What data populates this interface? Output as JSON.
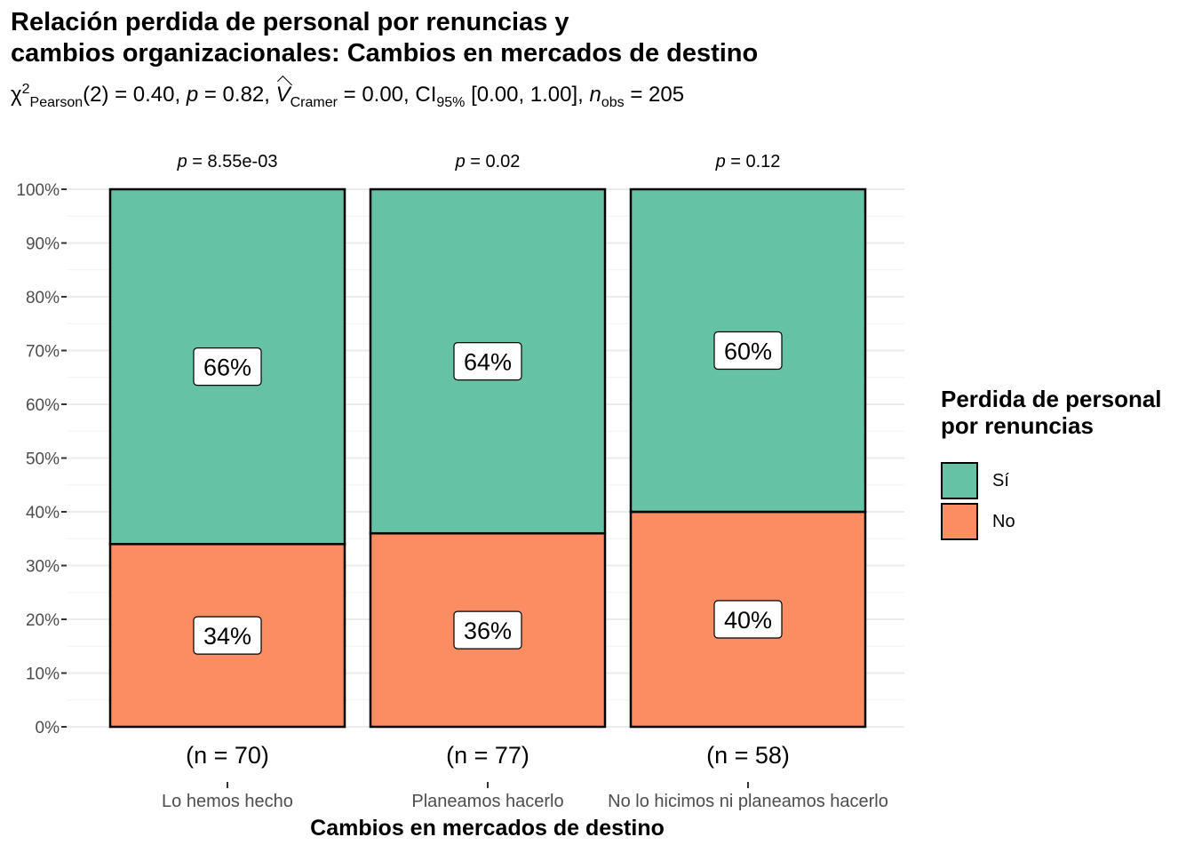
{
  "title_lines": [
    "Relación perdida de personal por renuncias y",
    "cambios organizacionales: Cambios en mercados de destino"
  ],
  "subtitle": {
    "chi": "χ",
    "chi_sup": "2",
    "chi_sub": "Pearson",
    "df_part": "(2) = 0.40, ",
    "p_label": "p",
    "p_part": " = 0.82, ",
    "v_label": "V",
    "v_sub": "Cramer",
    "v_part": " = 0.00, CI",
    "ci_sub": "95%",
    "ci_part": " [0.00, 1.00], ",
    "n_label": "n",
    "n_sub": "obs",
    "n_part": " = 205"
  },
  "legend": {
    "title_lines": [
      "Perdida de personal",
      "por renuncias"
    ],
    "items": [
      {
        "label": "Sí",
        "color": "#66C2A5"
      },
      {
        "label": "No",
        "color": "#FC8D62"
      }
    ]
  },
  "chart_data": {
    "type": "bar",
    "stacked": true,
    "xlabel": "Cambios en mercados de destino",
    "categories": [
      "Lo hemos hecho",
      "Planeamos hacerlo",
      "No lo hicimos ni planeamos hacerlo"
    ],
    "series": [
      {
        "name": "No",
        "values": [
          34,
          36,
          40
        ],
        "color": "#FC8D62"
      },
      {
        "name": "Sí",
        "values": [
          66,
          64,
          60
        ],
        "color": "#66C2A5"
      }
    ],
    "bar_labels": [
      [
        "34%",
        "66%"
      ],
      [
        "36%",
        "64%"
      ],
      [
        "40%",
        "60%"
      ]
    ],
    "n_labels": [
      "(n = 70)",
      "(n = 77)",
      "(n = 58)"
    ],
    "p_values": [
      "8.55e-03",
      "0.02",
      "0.12"
    ],
    "p_prefix": "p",
    "yticks": [
      "0%",
      "10%",
      "20%",
      "30%",
      "40%",
      "50%",
      "60%",
      "70%",
      "80%",
      "90%",
      "100%"
    ],
    "ylim": [
      0,
      100
    ],
    "grid": true
  }
}
